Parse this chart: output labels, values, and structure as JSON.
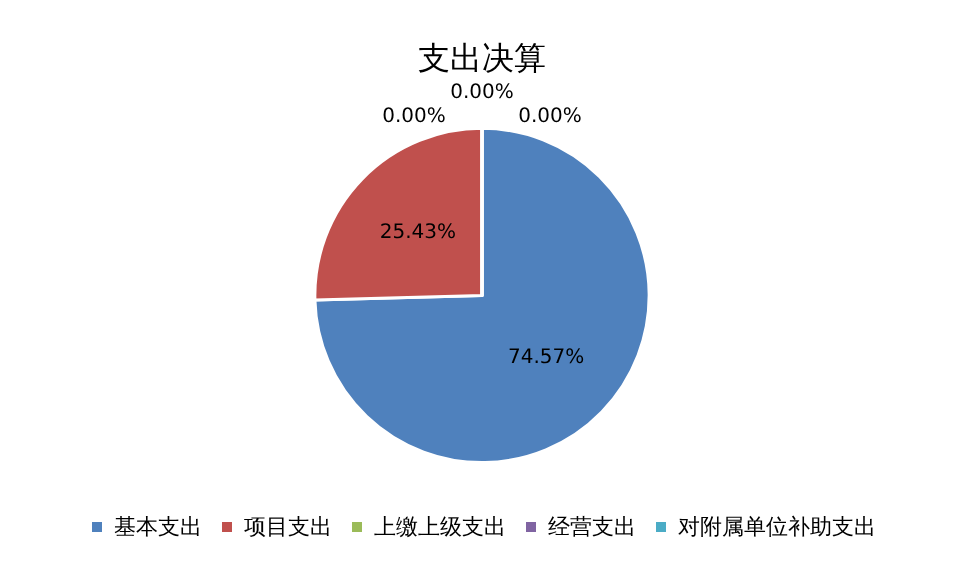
{
  "chart_data": {
    "type": "pie",
    "title": "支出决算",
    "categories": [
      "基本支出",
      "项目支出",
      "上缴上级支出",
      "经营支出",
      "对附属单位补助支出"
    ],
    "values": [
      74.57,
      25.43,
      0.0,
      0.0,
      0.0
    ],
    "colors": [
      "#4f81bd",
      "#c0504d",
      "#9bbb59",
      "#8064a2",
      "#4bacc6"
    ],
    "value_labels": [
      "74.57%",
      "25.43%",
      "0.00%",
      "0.00%",
      "0.00%"
    ],
    "legend": "bottom"
  }
}
